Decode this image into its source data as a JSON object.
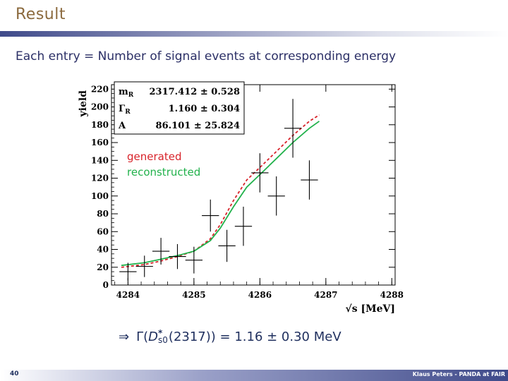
{
  "slide": {
    "title": "Result",
    "subtitle": "Each entry = Number of signal events at corresponding energy",
    "page_number": "40",
    "footer": "Klaus Peters - PANDA at FAIR"
  },
  "result": {
    "arrow": "⇒",
    "gamma": "Γ(",
    "d": "D",
    "sup": "*",
    "sub": "s0",
    "rest": "(2317)) = 1.16 ± 0.30  MeV"
  },
  "fit_box": [
    {
      "param": "m",
      "sub": "R",
      "value": "2317.412 ± 0.528"
    },
    {
      "param": "Γ",
      "sub": "R",
      "value": "1.160 ± 0.304"
    },
    {
      "param": "A",
      "sub": "",
      "value": "86.101 ± 25.824"
    }
  ],
  "colors": {
    "generated": "#d8232a",
    "reconstructed": "#22b24c",
    "title": "#8b6a3e",
    "text": "#2b2f66"
  },
  "chart_data": {
    "type": "scatter",
    "title": "",
    "xlabel": "√s [MeV]",
    "ylabel": "yield",
    "xlim": [
      4283.75,
      4288.05
    ],
    "ylim": [
      0,
      225
    ],
    "xticks": [
      4284,
      4285,
      4286,
      4287,
      4288
    ],
    "yticks": [
      0,
      20,
      40,
      60,
      80,
      100,
      120,
      140,
      160,
      180,
      200,
      220
    ],
    "legend": [
      "generated",
      "reconstructed"
    ],
    "points": [
      {
        "x": 4284.0,
        "y": 15,
        "xerr": 0.13,
        "yerr": 10
      },
      {
        "x": 4284.25,
        "y": 21,
        "xerr": 0.13,
        "yerr": 12
      },
      {
        "x": 4284.5,
        "y": 38,
        "xerr": 0.13,
        "yerr": 15
      },
      {
        "x": 4284.75,
        "y": 32,
        "xerr": 0.13,
        "yerr": 14
      },
      {
        "x": 4285.0,
        "y": 28,
        "xerr": 0.13,
        "yerr": 15
      },
      {
        "x": 4285.25,
        "y": 78,
        "xerr": 0.13,
        "yerr": 18
      },
      {
        "x": 4285.5,
        "y": 44,
        "xerr": 0.13,
        "yerr": 18
      },
      {
        "x": 4285.75,
        "y": 66,
        "xerr": 0.13,
        "yerr": 22
      },
      {
        "x": 4286.0,
        "y": 126,
        "xerr": 0.13,
        "yerr": 22
      },
      {
        "x": 4286.25,
        "y": 100,
        "xerr": 0.13,
        "yerr": 22
      },
      {
        "x": 4286.5,
        "y": 176,
        "xerr": 0.13,
        "yerr": 33
      },
      {
        "x": 4286.75,
        "y": 118,
        "xerr": 0.13,
        "yerr": 22
      }
    ],
    "series": [
      {
        "name": "generated",
        "style": "dashed",
        "x": [
          4283.9,
          4284.25,
          4284.5,
          4284.75,
          4285.0,
          4285.25,
          4285.4,
          4285.6,
          4285.8,
          4286.0,
          4286.25,
          4286.5,
          4286.75,
          4286.9
        ],
        "y": [
          20,
          23,
          27,
          32,
          38,
          52,
          68,
          95,
          118,
          132,
          150,
          168,
          184,
          191
        ]
      },
      {
        "name": "reconstructed",
        "style": "solid",
        "x": [
          4283.9,
          4284.25,
          4284.5,
          4284.75,
          4285.0,
          4285.25,
          4285.4,
          4285.6,
          4285.8,
          4286.0,
          4286.25,
          4286.5,
          4286.75,
          4286.9
        ],
        "y": [
          22,
          25,
          29,
          33,
          38,
          50,
          64,
          88,
          110,
          124,
          142,
          160,
          176,
          184
        ]
      }
    ]
  }
}
